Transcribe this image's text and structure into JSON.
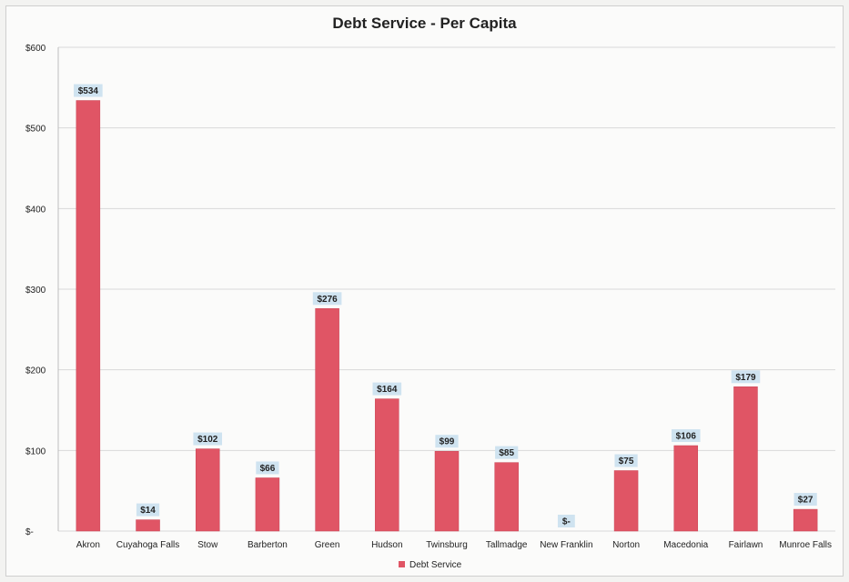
{
  "chart_data": {
    "type": "bar",
    "title": "Debt Service - Per Capita",
    "categories": [
      "Akron",
      "Cuyahoga Falls",
      "Stow",
      "Barberton",
      "Green",
      "Hudson",
      "Twinsburg",
      "Tallmadge",
      "New Franklin",
      "Norton",
      "Macedonia",
      "Fairlawn",
      "Munroe Falls"
    ],
    "series": [
      {
        "name": "Debt Service",
        "values": [
          534,
          14,
          102,
          66,
          276,
          164,
          99,
          85,
          0,
          75,
          106,
          179,
          27
        ],
        "labels": [
          "$534",
          "$14",
          "$102",
          "$66",
          "$276",
          "$164",
          "$99",
          "$85",
          "$-",
          "$75",
          "$106",
          "$179",
          "$27"
        ]
      }
    ],
    "ylim": [
      0,
      600
    ],
    "yticks": [
      0,
      100,
      200,
      300,
      400,
      500,
      600
    ],
    "ytick_labels": [
      "$-",
      "$100",
      "$200",
      "$300",
      "$400",
      "$500",
      "$600"
    ],
    "xlabel": "",
    "ylabel": "",
    "grid": true,
    "legend_position": "bottom",
    "colors": {
      "bar": "#e05565",
      "bar_edge": "#c94455",
      "label_bg": "#cfe3f0",
      "grid": "#d9d9d9"
    }
  }
}
